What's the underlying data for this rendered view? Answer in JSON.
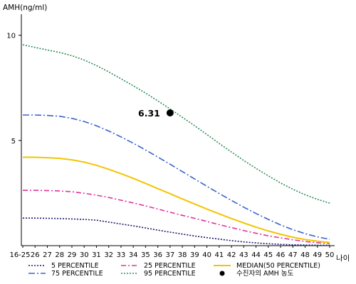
{
  "chart_data": {
    "type": "line",
    "ylabel": "AMH(ng/ml)",
    "xlabel": "나이",
    "ylim": [
      0,
      11
    ],
    "yticks": [
      5,
      10
    ],
    "categories": [
      "16-25",
      "26",
      "27",
      "28",
      "29",
      "30",
      "31",
      "32",
      "33",
      "34",
      "35",
      "36",
      "37",
      "38",
      "39",
      "40",
      "41",
      "42",
      "43",
      "44",
      "45",
      "46",
      "47",
      "48",
      "49",
      "50"
    ],
    "series": [
      {
        "name": "5 PERCENTILE",
        "color": "#1a1a6e",
        "dash": "2,2",
        "values": [
          1.31,
          1.31,
          1.3,
          1.29,
          1.27,
          1.25,
          1.21,
          1.12,
          1.03,
          0.94,
          0.84,
          0.74,
          0.64,
          0.55,
          0.46,
          0.38,
          0.31,
          0.24,
          0.18,
          0.13,
          0.09,
          0.06,
          0.04,
          0.03,
          0.02,
          0.02
        ]
      },
      {
        "name": "25 PERCENTILE",
        "color": "#e0339c",
        "dash": "7,3,2,3",
        "values": [
          2.63,
          2.63,
          2.62,
          2.6,
          2.56,
          2.49,
          2.4,
          2.29,
          2.16,
          2.03,
          1.89,
          1.74,
          1.59,
          1.44,
          1.3,
          1.15,
          1.0,
          0.86,
          0.72,
          0.59,
          0.47,
          0.37,
          0.28,
          0.2,
          0.14,
          0.1
        ]
      },
      {
        "name": "MEDIAN(50 PERCENTILE)",
        "color": "#f2c500",
        "dash": "",
        "values": [
          4.2,
          4.2,
          4.18,
          4.15,
          4.08,
          3.97,
          3.82,
          3.63,
          3.42,
          3.2,
          2.96,
          2.71,
          2.47,
          2.22,
          1.98,
          1.74,
          1.51,
          1.29,
          1.08,
          0.88,
          0.7,
          0.54,
          0.4,
          0.29,
          0.21,
          0.15
        ]
      },
      {
        "name": "75 PERCENTILE",
        "color": "#3a63c8",
        "dash": "9,3,2,3",
        "values": [
          6.21,
          6.21,
          6.19,
          6.15,
          6.05,
          5.9,
          5.7,
          5.45,
          5.17,
          4.87,
          4.55,
          4.21,
          3.87,
          3.52,
          3.17,
          2.82,
          2.48,
          2.15,
          1.83,
          1.53,
          1.25,
          0.99,
          0.76,
          0.57,
          0.42,
          0.3
        ]
      },
      {
        "name": "95 PERCENTILE",
        "color": "#2e8b57",
        "dash": "2,2",
        "values": [
          9.55,
          9.42,
          9.3,
          9.18,
          9.03,
          8.82,
          8.56,
          8.26,
          7.93,
          7.6,
          7.25,
          6.88,
          6.5,
          6.1,
          5.7,
          5.28,
          4.86,
          4.45,
          4.05,
          3.67,
          3.32,
          2.98,
          2.68,
          2.42,
          2.2,
          2.02
        ]
      }
    ],
    "highlight": {
      "name": "수진자의 AMH 농도",
      "x": "37",
      "y": 6.31,
      "label": "6.31",
      "color": "#000000"
    },
    "legend_position": "bottom"
  }
}
